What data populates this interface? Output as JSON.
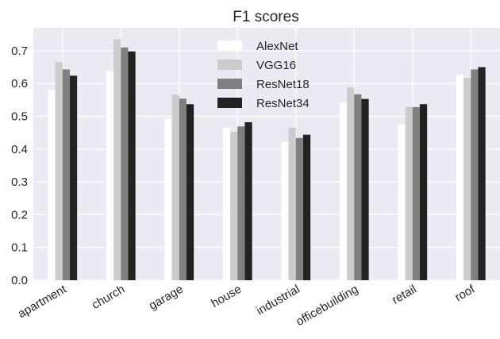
{
  "chart_data": {
    "type": "bar",
    "title": "F1 scores",
    "xlabel": "",
    "ylabel": "",
    "categories": [
      "apartment",
      "church",
      "garage",
      "house",
      "industrial",
      "officebuilding",
      "retail",
      "roof"
    ],
    "series": [
      {
        "name": "AlexNet",
        "color": "#ffffff",
        "values": [
          0.58,
          0.638,
          0.493,
          0.465,
          0.421,
          0.541,
          0.475,
          0.627
        ]
      },
      {
        "name": "VGG16",
        "color": "#cccccc",
        "values": [
          0.665,
          0.735,
          0.566,
          0.453,
          0.465,
          0.588,
          0.529,
          0.617
        ]
      },
      {
        "name": "ResNet18",
        "color": "#808080",
        "values": [
          0.643,
          0.71,
          0.554,
          0.469,
          0.434,
          0.567,
          0.528,
          0.643
        ]
      },
      {
        "name": "ResNet34",
        "color": "#222222",
        "values": [
          0.624,
          0.698,
          0.537,
          0.482,
          0.444,
          0.553,
          0.537,
          0.65
        ]
      }
    ],
    "ylim": [
      0.0,
      0.77
    ],
    "yticks": [
      "0.0",
      "0.1",
      "0.2",
      "0.3",
      "0.4",
      "0.5",
      "0.6",
      "0.7"
    ],
    "grid": true,
    "legend_position": "top-center",
    "plot_background": "#eaeaf2",
    "grid_color": "#ffffff"
  }
}
